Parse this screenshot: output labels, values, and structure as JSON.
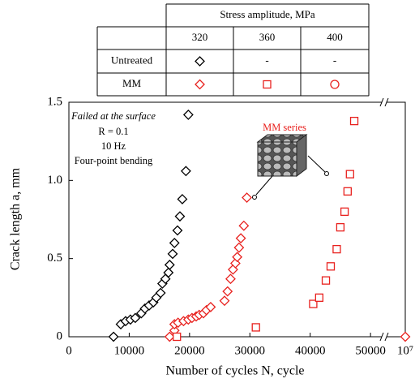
{
  "chart_data": {
    "type": "scatter",
    "xlabel": "Number of cycles N, cycle",
    "ylabel": "Crack length a, mm",
    "xlim": [
      0,
      10000000
    ],
    "xbreak": 52000,
    "xticks": [
      0,
      10000,
      20000,
      30000,
      40000,
      50000,
      {
        "value": 10000000,
        "label": "10⁷"
      }
    ],
    "ylim": [
      0,
      1.5
    ],
    "yticks": [
      0,
      0.5,
      {
        "value": 1,
        "label": "1.0"
      },
      1.5
    ],
    "grid": false,
    "annotations": [
      "Failed at the surface",
      "R = 0.1",
      "10 Hz",
      "Four-point bending",
      "MM series"
    ],
    "legend": {
      "title": "Stress amplitude, MPa",
      "columns": [
        "320",
        "360",
        "400"
      ],
      "rows": [
        "Untreated",
        "MM"
      ],
      "dash": "-"
    },
    "series": [
      {
        "row": 0,
        "column": 0,
        "marker": "diamond",
        "color": "#000000",
        "x": [
          7400,
          8600,
          9400,
          10200,
          11000,
          12000,
          12600,
          13300,
          14000,
          14500,
          15200,
          15500,
          16000,
          16500,
          16700,
          17200,
          17500,
          18000,
          18400,
          18800,
          19400,
          19800
        ],
        "values": [
          0,
          0.08,
          0.1,
          0.11,
          0.12,
          0.15,
          0.18,
          0.2,
          0.22,
          0.25,
          0.28,
          0.34,
          0.37,
          0.41,
          0.46,
          0.53,
          0.6,
          0.68,
          0.77,
          0.88,
          1.06,
          1.42
        ]
      },
      {
        "row": 1,
        "column": 0,
        "marker": "diamond",
        "color": "#e8211e",
        "x": [
          16700,
          17500,
          17500,
          18100,
          19000,
          19800,
          20400,
          21100,
          21600,
          22300,
          22800,
          23500,
          25800,
          26300,
          26800,
          27200,
          27600,
          27900,
          28200,
          28500,
          29000,
          29500,
          10000000
        ],
        "values": [
          0,
          0.04,
          0.08,
          0.09,
          0.1,
          0.11,
          0.12,
          0.13,
          0.14,
          0.15,
          0.17,
          0.19,
          0.23,
          0.29,
          0.37,
          0.43,
          0.47,
          0.51,
          0.57,
          0.63,
          0.71,
          0.89,
          0
        ]
      },
      {
        "row": 1,
        "column": 1,
        "marker": "square",
        "color": "#e8211e",
        "x": [
          17900,
          31000,
          40500,
          41500,
          42600,
          43400,
          44400,
          45000,
          45700,
          46200,
          46600,
          47300
        ],
        "values": [
          0,
          0.06,
          0.21,
          0.25,
          0.36,
          0.45,
          0.56,
          0.7,
          0.8,
          0.93,
          1.04,
          1.38
        ]
      },
      {
        "row": 1,
        "column": 2,
        "marker": "circle",
        "color": "#e8211e",
        "x": [],
        "values": []
      }
    ]
  }
}
